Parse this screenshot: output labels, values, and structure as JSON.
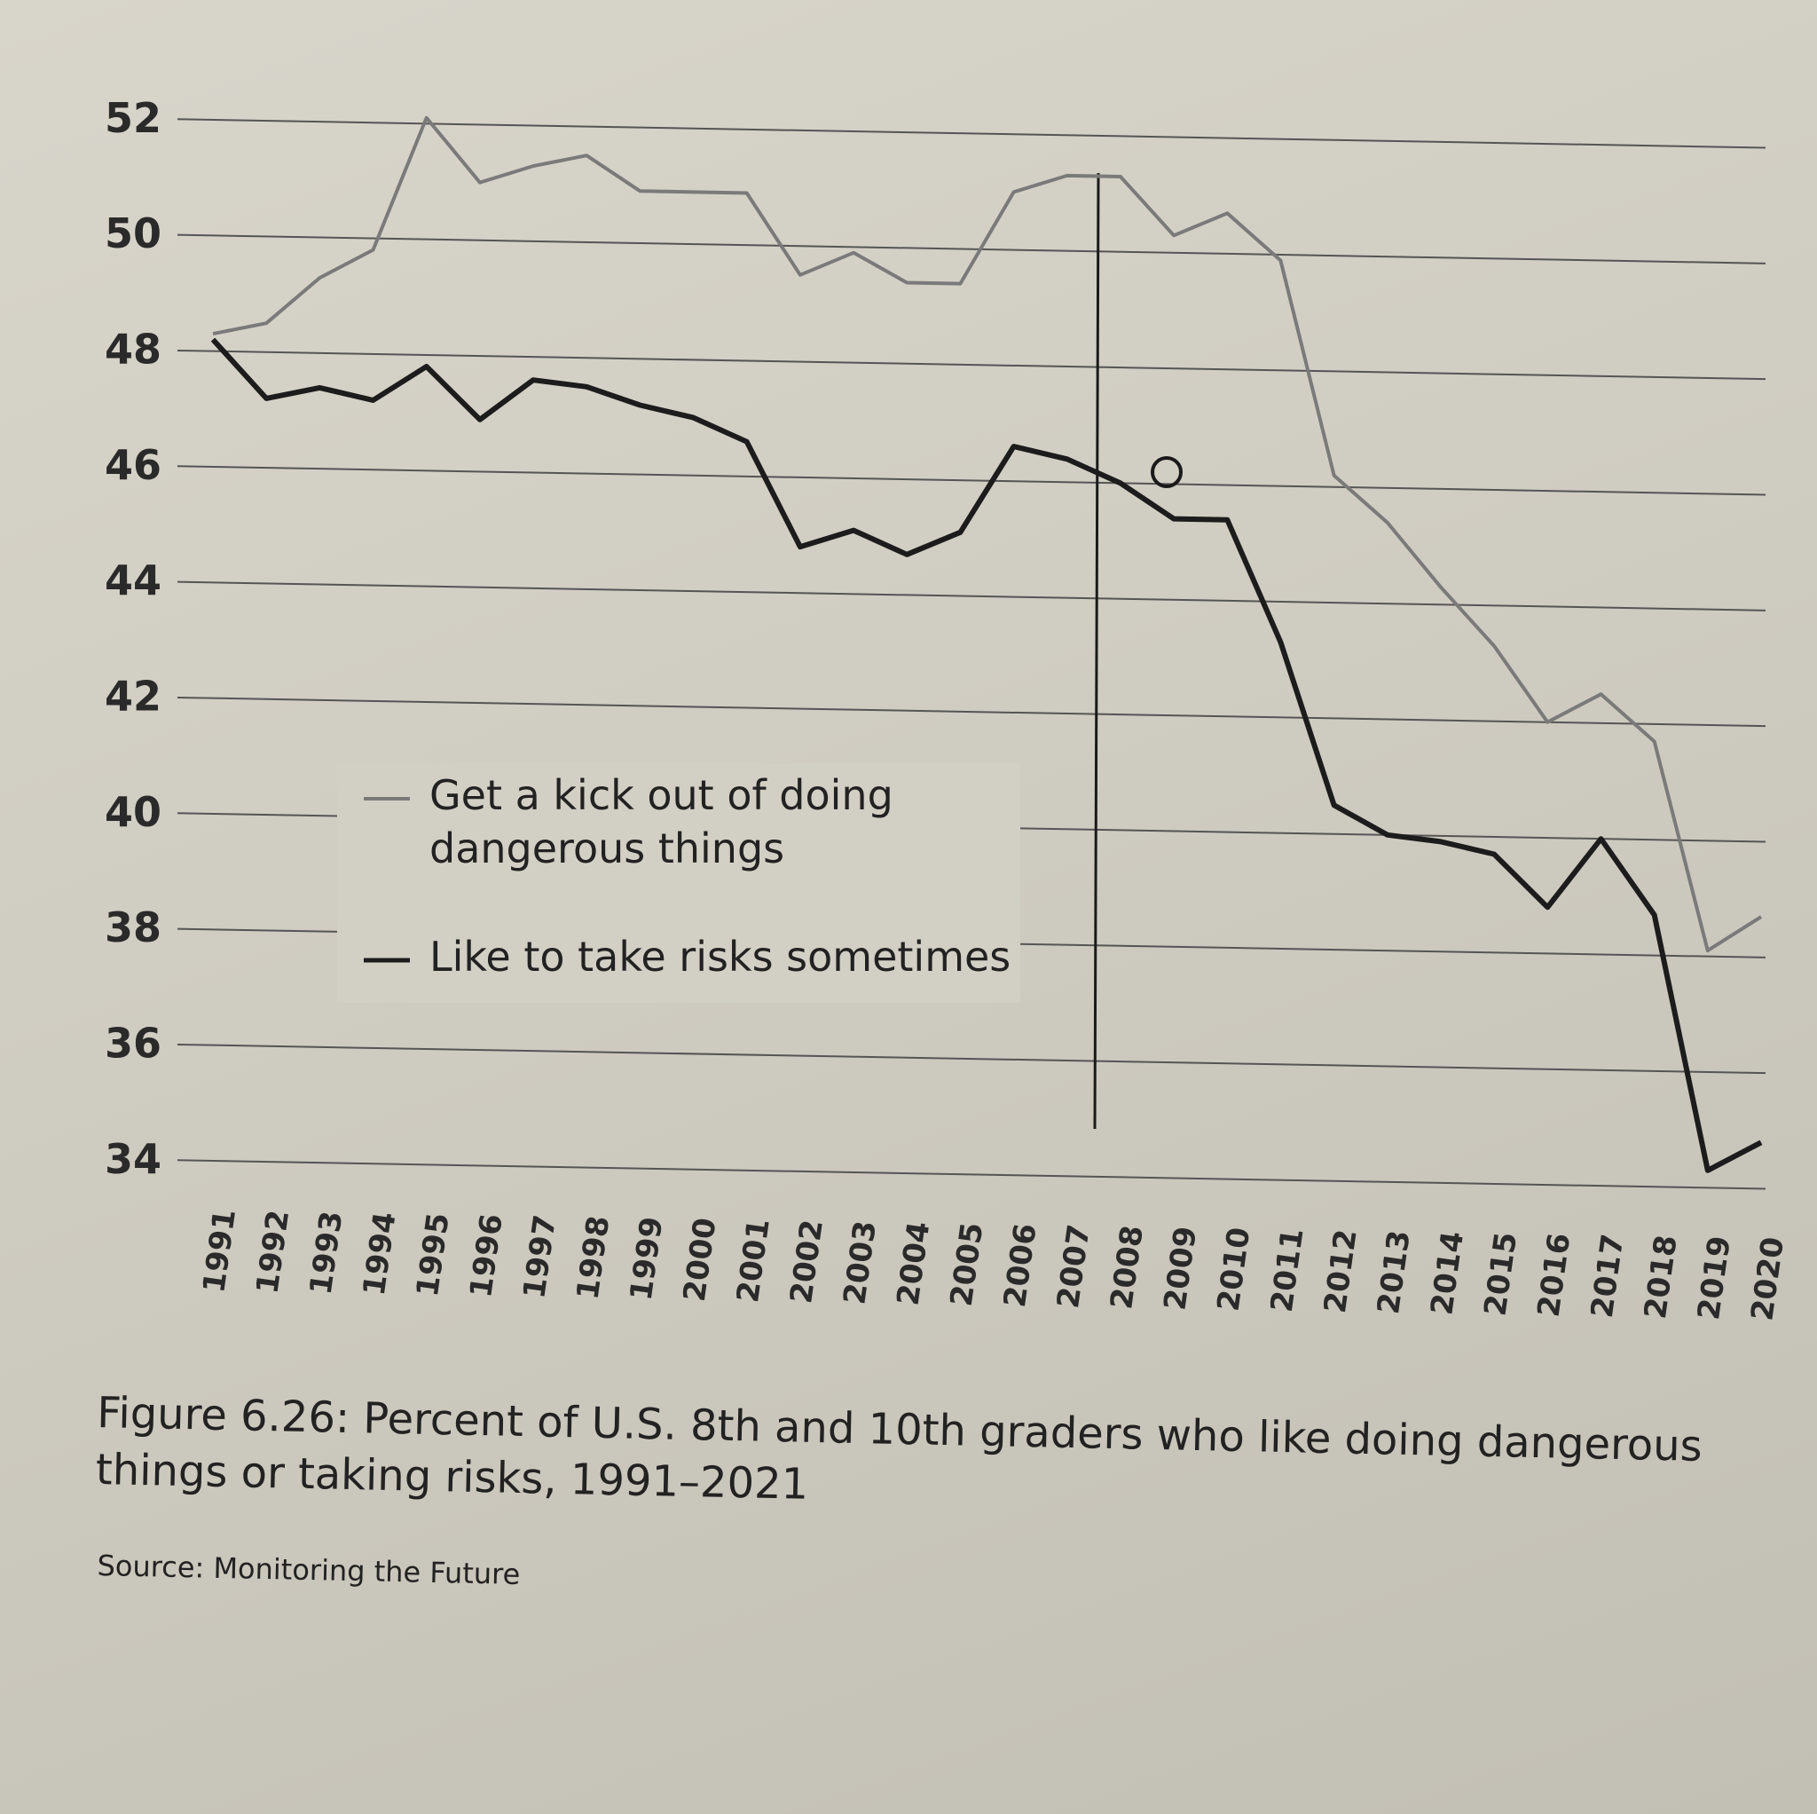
{
  "chart_data": {
    "type": "line",
    "x": [
      "1991",
      "1992",
      "1993",
      "1994",
      "1995",
      "1996",
      "1997",
      "1998",
      "1999",
      "2000",
      "2001",
      "2002",
      "2003",
      "2004",
      "2005",
      "2006",
      "2007",
      "2008",
      "2009",
      "2010",
      "2011",
      "2012",
      "2013",
      "2014",
      "2015",
      "2016",
      "2017",
      "2018",
      "2019",
      "2020"
    ],
    "series": [
      {
        "name": "Get a kick out of doing dangerous things",
        "color": "#7a7a7a",
        "values": [
          48.3,
          48.5,
          49.3,
          49.8,
          52.1,
          51.0,
          51.3,
          51.5,
          50.9,
          50.9,
          50.9,
          49.5,
          49.9,
          49.4,
          49.4,
          51.0,
          51.3,
          51.3,
          50.3,
          50.7,
          49.9,
          46.2,
          45.4,
          44.3,
          43.3,
          42.0,
          42.5,
          41.7,
          38.1,
          38.7
        ]
      },
      {
        "name": "Like to take risks sometimes",
        "color": "#1c1c1c",
        "values": [
          48.2,
          47.2,
          47.4,
          47.2,
          47.8,
          46.9,
          47.6,
          47.5,
          47.2,
          47.0,
          46.6,
          44.8,
          45.1,
          44.7,
          45.1,
          46.6,
          46.4,
          46.0,
          45.4,
          45.4,
          43.3,
          40.5,
          40.0,
          39.9,
          39.7,
          38.8,
          40.0,
          38.7,
          34.3,
          34.8
        ]
      }
    ],
    "y_ticks": [
      "52",
      "50",
      "48",
      "46",
      "44",
      "42",
      "40",
      "38",
      "36",
      "34"
    ],
    "ylim": [
      34,
      52
    ],
    "grid": true,
    "legend_position": "center-left",
    "title": "Figure 6.26: Percent of U.S. 8th and 10th graders who like doing dangerous things or taking risks, 1991–2021",
    "source": "Source: Monitoring the Future"
  },
  "legend": {
    "series1_line1": "Get a kick out of doing",
    "series1_line2": "dangerous things",
    "series2_line1": "Like to take risks sometimes"
  }
}
